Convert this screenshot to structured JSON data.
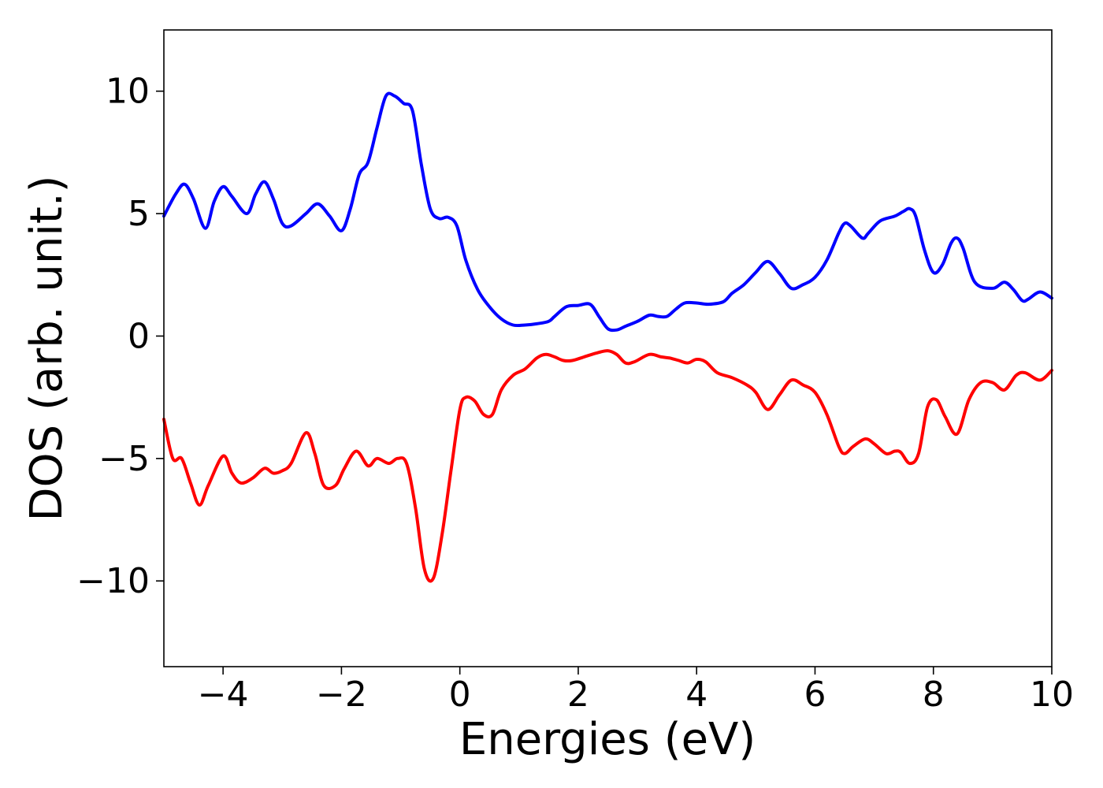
{
  "chart_data": {
    "type": "line",
    "title": "",
    "xlabel": "Energies (eV)",
    "ylabel": "DOS (arb. unit.)",
    "xlim": [
      -5,
      10
    ],
    "ylim": [
      -13.5,
      12.5
    ],
    "grid": false,
    "legend": "none",
    "x_ticks": [
      -4,
      -2,
      0,
      2,
      4,
      6,
      8,
      10
    ],
    "x_tick_labels": [
      "−4",
      "−2",
      "0",
      "2",
      "4",
      "6",
      "8",
      "10"
    ],
    "y_ticks": [
      -10,
      -5,
      0,
      5,
      10
    ],
    "y_tick_labels": [
      "−10",
      "−5",
      "0",
      "5",
      "10"
    ],
    "series": [
      {
        "color": "#0000ff",
        "x": [
          -5.0,
          -4.8,
          -4.65,
          -4.5,
          -4.3,
          -4.15,
          -4.0,
          -3.85,
          -3.6,
          -3.45,
          -3.3,
          -3.15,
          -3.0,
          -2.85,
          -2.6,
          -2.4,
          -2.2,
          -2.0,
          -1.85,
          -1.7,
          -1.55,
          -1.4,
          -1.25,
          -1.1,
          -0.95,
          -0.8,
          -0.65,
          -0.5,
          -0.35,
          -0.2,
          -0.05,
          0.1,
          0.3,
          0.5,
          0.7,
          0.9,
          1.1,
          1.3,
          1.5,
          1.6,
          1.8,
          2.0,
          2.2,
          2.35,
          2.5,
          2.65,
          2.8,
          3.0,
          3.2,
          3.35,
          3.5,
          3.65,
          3.8,
          4.0,
          4.2,
          4.45,
          4.6,
          4.8,
          5.0,
          5.2,
          5.4,
          5.6,
          5.8,
          6.0,
          6.2,
          6.4,
          6.5,
          6.6,
          6.8,
          6.9,
          7.1,
          7.35,
          7.5,
          7.6,
          7.7,
          7.85,
          8.0,
          8.15,
          8.3,
          8.4,
          8.5,
          8.7,
          9.0,
          9.2,
          9.35,
          9.5,
          9.6,
          9.8,
          10.0
        ],
        "y": [
          4.9,
          5.8,
          6.2,
          5.6,
          4.4,
          5.5,
          6.1,
          5.7,
          5.0,
          5.8,
          6.3,
          5.6,
          4.6,
          4.5,
          5.0,
          5.4,
          4.9,
          4.3,
          5.2,
          6.6,
          7.1,
          8.5,
          9.8,
          9.8,
          9.5,
          9.2,
          7.0,
          5.2,
          4.8,
          4.85,
          4.5,
          3.1,
          1.9,
          1.2,
          0.7,
          0.45,
          0.45,
          0.5,
          0.6,
          0.8,
          1.2,
          1.25,
          1.3,
          0.8,
          0.3,
          0.25,
          0.4,
          0.6,
          0.85,
          0.8,
          0.8,
          1.1,
          1.35,
          1.35,
          1.3,
          1.4,
          1.75,
          2.1,
          2.6,
          3.05,
          2.55,
          1.95,
          2.1,
          2.4,
          3.1,
          4.2,
          4.6,
          4.5,
          4.0,
          4.2,
          4.7,
          4.9,
          5.1,
          5.2,
          4.9,
          3.5,
          2.6,
          2.9,
          3.8,
          4.0,
          3.6,
          2.2,
          1.95,
          2.2,
          1.9,
          1.45,
          1.5,
          1.8,
          1.55
        ]
      },
      {
        "color": "#ff0000",
        "x": [
          -5.0,
          -4.85,
          -4.7,
          -4.55,
          -4.4,
          -4.25,
          -4.0,
          -3.85,
          -3.7,
          -3.5,
          -3.3,
          -3.15,
          -3.0,
          -2.85,
          -2.6,
          -2.45,
          -2.3,
          -2.1,
          -1.95,
          -1.75,
          -1.55,
          -1.4,
          -1.2,
          -1.05,
          -0.9,
          -0.75,
          -0.6,
          -0.45,
          -0.3,
          -0.15,
          0.0,
          0.1,
          0.25,
          0.4,
          0.55,
          0.7,
          0.9,
          1.1,
          1.3,
          1.45,
          1.6,
          1.75,
          1.9,
          2.1,
          2.3,
          2.5,
          2.65,
          2.8,
          2.95,
          3.2,
          3.4,
          3.55,
          3.7,
          3.85,
          4.0,
          4.15,
          4.35,
          4.6,
          4.85,
          5.0,
          5.2,
          5.4,
          5.6,
          5.8,
          6.0,
          6.2,
          6.4,
          6.5,
          6.65,
          6.85,
          7.0,
          7.2,
          7.35,
          7.45,
          7.6,
          7.75,
          7.9,
          8.05,
          8.2,
          8.4,
          8.6,
          8.8,
          9.0,
          9.2,
          9.4,
          9.55,
          9.8,
          10.0
        ],
        "y": [
          -3.4,
          -5.0,
          -5.0,
          -6.0,
          -6.9,
          -6.1,
          -4.9,
          -5.6,
          -6.0,
          -5.8,
          -5.4,
          -5.6,
          -5.5,
          -5.2,
          -3.95,
          -4.8,
          -6.1,
          -6.1,
          -5.4,
          -4.7,
          -5.3,
          -5.0,
          -5.2,
          -5.0,
          -5.2,
          -7.0,
          -9.5,
          -9.9,
          -8.1,
          -5.5,
          -3.0,
          -2.5,
          -2.65,
          -3.2,
          -3.2,
          -2.2,
          -1.6,
          -1.35,
          -0.9,
          -0.75,
          -0.85,
          -1.0,
          -1.0,
          -0.85,
          -0.7,
          -0.6,
          -0.75,
          -1.1,
          -1.05,
          -0.75,
          -0.85,
          -0.9,
          -1.0,
          -1.1,
          -0.95,
          -1.05,
          -1.5,
          -1.7,
          -2.0,
          -2.3,
          -3.0,
          -2.4,
          -1.8,
          -2.0,
          -2.3,
          -3.2,
          -4.5,
          -4.8,
          -4.5,
          -4.2,
          -4.4,
          -4.8,
          -4.7,
          -4.75,
          -5.2,
          -4.8,
          -2.9,
          -2.6,
          -3.3,
          -4.0,
          -2.6,
          -1.9,
          -1.9,
          -2.2,
          -1.6,
          -1.5,
          -1.8,
          -1.4
        ]
      }
    ]
  }
}
